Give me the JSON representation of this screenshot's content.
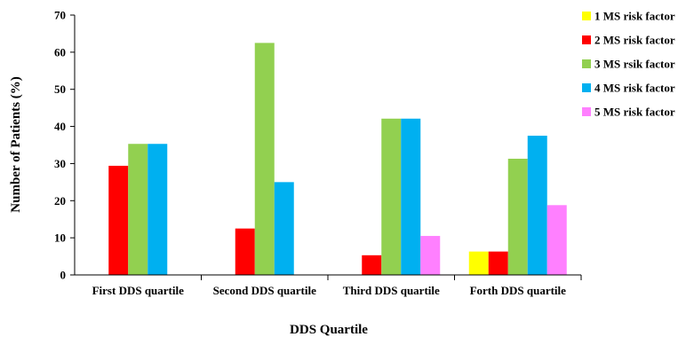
{
  "chart_data": {
    "type": "bar",
    "title": "",
    "xlabel": "DDS Quartile",
    "ylabel": "Number  of  Patients  (%)",
    "ylim": [
      0,
      70
    ],
    "yticks": [
      0,
      10,
      20,
      30,
      40,
      50,
      60,
      70
    ],
    "categories": [
      "First  DDS quartile",
      "Second DDS quartile",
      "Third DDS quartile",
      "Forth DDS quartile"
    ],
    "series": [
      {
        "name": "1 MS risk factor",
        "color": "#ffff00",
        "values": [
          0,
          0,
          0,
          6.3
        ]
      },
      {
        "name": "2 MS risk factor",
        "color": "#ff0000",
        "values": [
          29.4,
          12.5,
          5.3,
          6.3
        ]
      },
      {
        "name": "3 MS rsik factor",
        "color": "#92d050",
        "values": [
          35.3,
          62.5,
          42.1,
          31.3
        ]
      },
      {
        "name": "4 MS risk factor",
        "color": "#00b0f0",
        "values": [
          35.3,
          25.0,
          42.1,
          37.5
        ]
      },
      {
        "name": "5 MS risk factor",
        "color": "#ff80ff",
        "values": [
          0,
          0,
          10.5,
          18.8
        ]
      }
    ],
    "grid": false,
    "legend_position": "right"
  }
}
